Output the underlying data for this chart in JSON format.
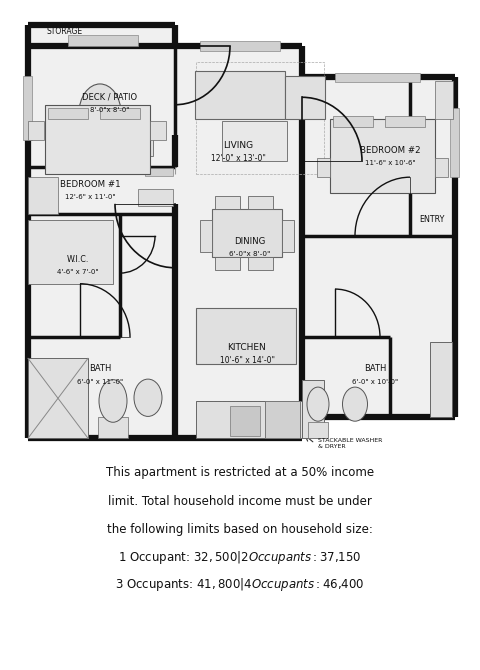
{
  "bg_color": "#ffffff",
  "wall_color": "#111111",
  "wall_lw": 4.5,
  "med_lw": 2.5,
  "thin_lw": 1.0,
  "bottom_text_line1": "This apartment is restricted at a 50% income",
  "bottom_text_line2": "limit. Total household income must be under",
  "bottom_text_line3": "the following limits based on household size:",
  "bottom_text_line4": "1 Occupant: $32,500  |  2 Occupants: $37,150",
  "bottom_text_line5": "3 Occupants: $41,800  |  4 Occupants: $46,400"
}
